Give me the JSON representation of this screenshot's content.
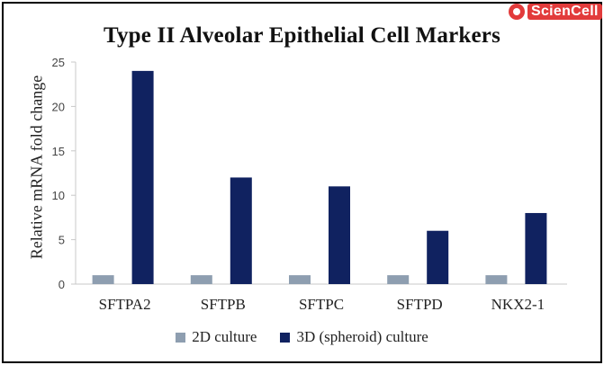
{
  "logo_text": "ScienCell",
  "chart_data": {
    "type": "bar",
    "title": "Type II Alveolar Epithelial Cell Markers",
    "ylabel": "Relative mRNA fold change",
    "xlabel": "",
    "ylim": [
      0,
      25
    ],
    "yticks": [
      0,
      5,
      10,
      15,
      20,
      25
    ],
    "grid": false,
    "legend_position": "bottom",
    "categories": [
      "SFTPA2",
      "SFTPB",
      "SFTPC",
      "SFTPD",
      "NKX2-1"
    ],
    "series": [
      {
        "name": "2D culture",
        "color": "#8e9eb0",
        "values": [
          1,
          1,
          1,
          1,
          1
        ]
      },
      {
        "name": "3D (spheroid) culture",
        "color": "#102260",
        "values": [
          24,
          12,
          11,
          6,
          8
        ]
      }
    ]
  }
}
